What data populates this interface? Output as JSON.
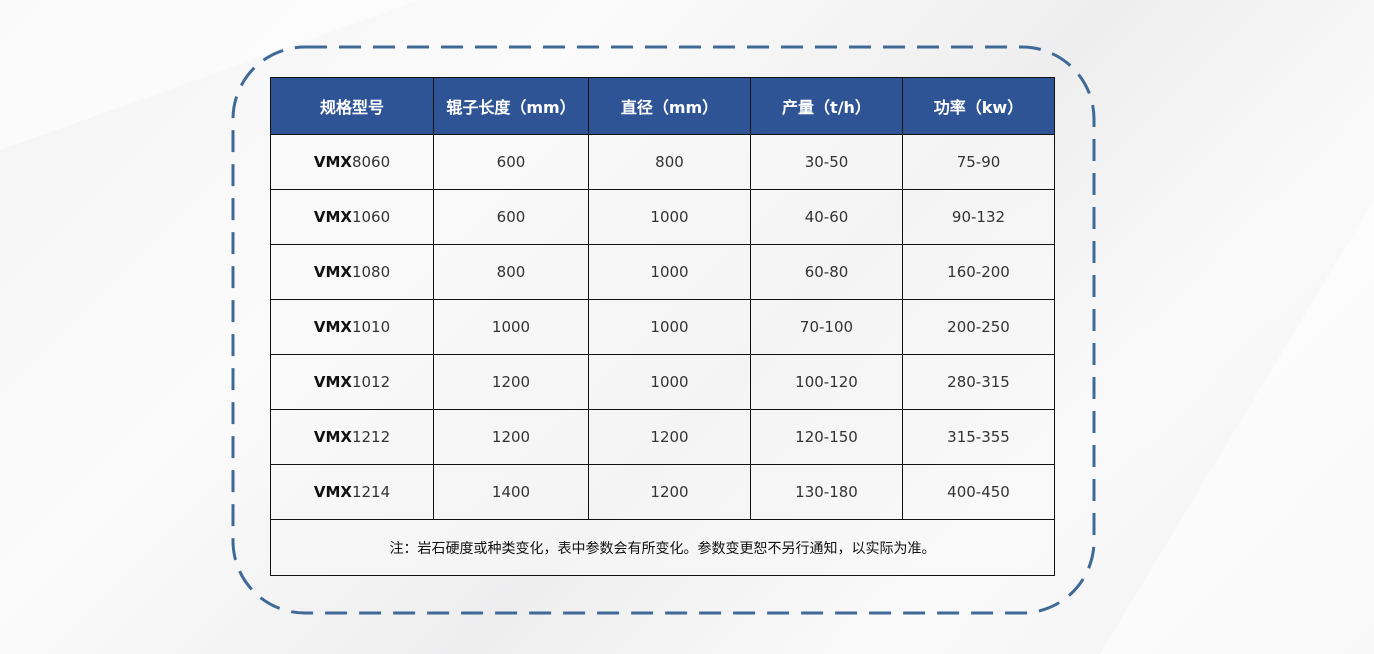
{
  "table": {
    "headers": [
      "规格型号",
      "辊子长度（mm）",
      "直径（mm）",
      "产量（t/h）",
      "功率（kw）"
    ],
    "rows": [
      {
        "prefix": "VMX",
        "number": "8060",
        "length": "600",
        "diameter": "800",
        "output": "30-50",
        "power": "75-90"
      },
      {
        "prefix": "VMX",
        "number": "1060",
        "length": "600",
        "diameter": "1000",
        "output": "40-60",
        "power": "90-132"
      },
      {
        "prefix": "VMX",
        "number": "1080",
        "length": "800",
        "diameter": "1000",
        "output": "60-80",
        "power": "160-200"
      },
      {
        "prefix": "VMX",
        "number": "1010",
        "length": "1000",
        "diameter": "1000",
        "output": "70-100",
        "power": "200-250"
      },
      {
        "prefix": "VMX",
        "number": "1012",
        "length": "1200",
        "diameter": "1000",
        "output": "100-120",
        "power": "280-315"
      },
      {
        "prefix": "VMX",
        "number": "1212",
        "length": "1200",
        "diameter": "1200",
        "output": "120-150",
        "power": "315-355"
      },
      {
        "prefix": "VMX",
        "number": "1214",
        "length": "1400",
        "diameter": "1200",
        "output": "130-180",
        "power": "400-450"
      }
    ],
    "note": "注：岩石硬度或种类变化，表中参数会有所变化。参数变更恕不另行通知，以实际为准。"
  },
  "colors": {
    "header_bg": "#2f5496",
    "dashed_frame": "#3f6a98"
  }
}
